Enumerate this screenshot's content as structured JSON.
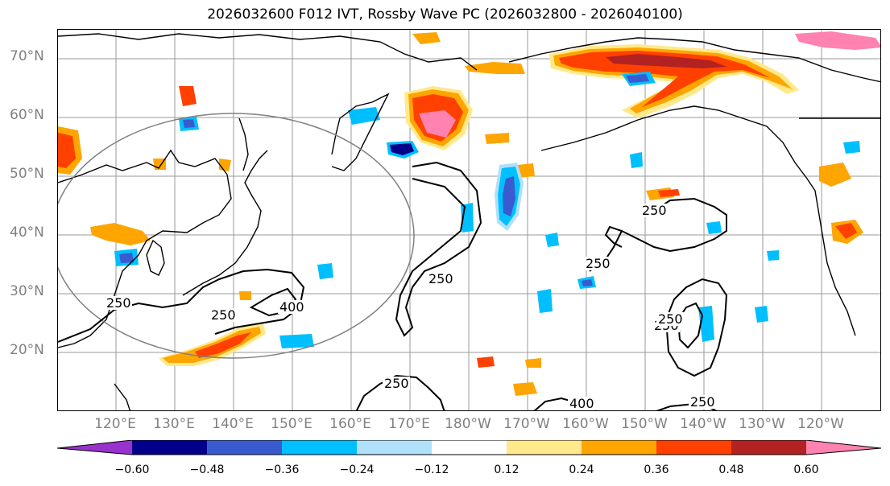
{
  "title": "2026032600 F012 IVT, Rossby Wave PC (2026032800 - 2026040100)",
  "lat_labels": [
    "70°N",
    "60°N",
    "50°N",
    "40°N",
    "30°N",
    "20°N"
  ],
  "lon_labels": [
    "120°E",
    "130°E",
    "140°E",
    "150°E",
    "160°E",
    "170°E",
    "180°W",
    "170°W",
    "160°W",
    "150°W",
    "140°W",
    "130°W",
    "120°W"
  ],
  "contour_labels": [
    "250",
    "250",
    "400",
    "250",
    "250",
    "250",
    "250",
    "400",
    "250",
    "250",
    "250"
  ],
  "colorbar": {
    "ticks": [
      "−0.60",
      "−0.48",
      "−0.36",
      "−0.24",
      "−0.12",
      "0.12",
      "0.24",
      "0.36",
      "0.48",
      "0.60"
    ],
    "colors": [
      "#9932CC",
      "#00008B",
      "#3A5BCF",
      "#00BFFF",
      "#B0E0FA",
      "#FFFFFF",
      "#FFE98A",
      "#FFA500",
      "#FF4000",
      "#B22222",
      "#FF82B0"
    ]
  },
  "shading_colors": {
    "pink": "#FF82B0",
    "darkred": "#B22222",
    "red": "#FF4000",
    "orange": "#FFA500",
    "yellow": "#FFE98A",
    "lightblue": "#B0E0FA",
    "cyan": "#00BFFF",
    "blue": "#3A5BCF",
    "navy": "#00008B"
  }
}
